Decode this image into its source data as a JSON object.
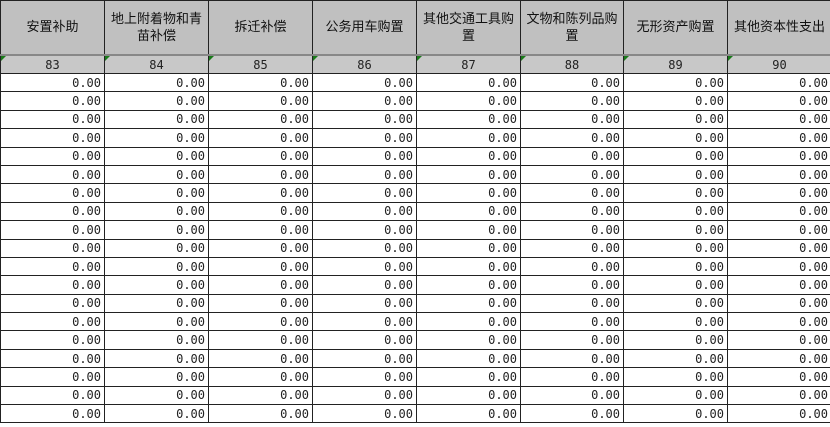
{
  "columns": [
    {
      "header": "安置补助",
      "code": "83"
    },
    {
      "header": "地上附着物和青苗补偿",
      "code": "84"
    },
    {
      "header": "拆迁补偿",
      "code": "85"
    },
    {
      "header": "公务用车购置",
      "code": "86"
    },
    {
      "header": "其他交通工具购置",
      "code": "87"
    },
    {
      "header": "文物和陈列品购置",
      "code": "88"
    },
    {
      "header": "无形资产购置",
      "code": "89"
    },
    {
      "header": "其他资本性支出",
      "code": "90"
    }
  ],
  "row_count": 19,
  "cell_value": "0.00",
  "colors": {
    "header_bg": "#c0c0c0",
    "marker": "#1a7a1a"
  }
}
